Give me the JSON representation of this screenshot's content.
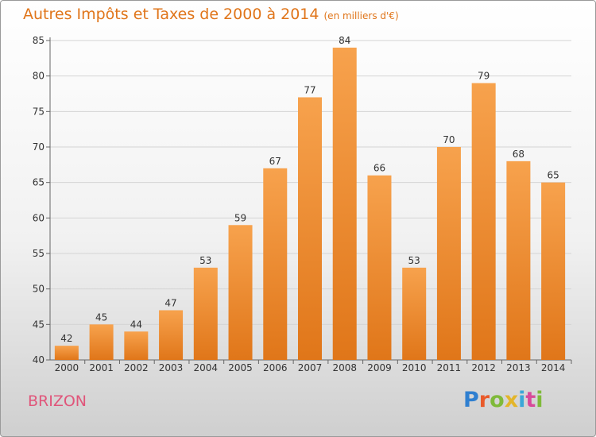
{
  "title": "Autres Impôts et Taxes de 2000 à 2014",
  "unit": "(en milliers d'€)",
  "footer_label": "BRIZON",
  "logo_text": "Proxiti",
  "colors": {
    "bar_top": "#f7a24d",
    "bar_bottom": "#e07619",
    "title": "#e0751a",
    "footer": "#e0557a"
  },
  "chart_data": {
    "type": "bar",
    "categories": [
      "2000",
      "2001",
      "2002",
      "2003",
      "2004",
      "2005",
      "2006",
      "2007",
      "2008",
      "2009",
      "2010",
      "2011",
      "2012",
      "2013",
      "2014"
    ],
    "values": [
      42,
      45,
      44,
      47,
      53,
      59,
      67,
      77,
      84,
      66,
      53,
      70,
      79,
      68,
      65
    ],
    "title": "Autres Impôts et Taxes de 2000 à 2014",
    "xlabel": "",
    "ylabel": "",
    "ylim": [
      40,
      85
    ],
    "yticks": [
      40,
      45,
      50,
      55,
      60,
      65,
      70,
      75,
      80,
      85
    ],
    "grid": true,
    "data_labels": true
  }
}
